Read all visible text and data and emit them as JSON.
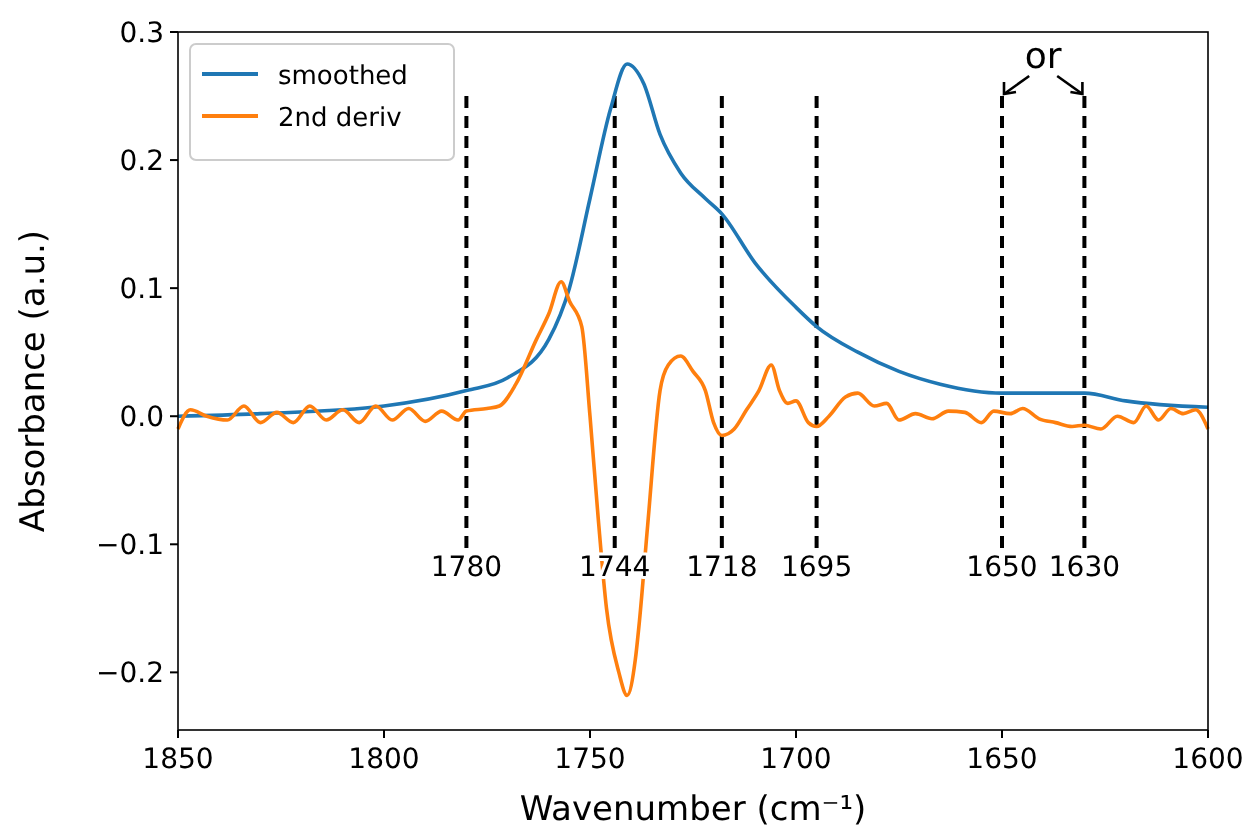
{
  "chart_data": {
    "type": "line",
    "xlabel": "Wavenumber (cm⁻¹)",
    "ylabel": "Absorbance (a.u.)",
    "xlim": [
      1850,
      1600
    ],
    "xticks": [
      1850,
      1800,
      1750,
      1700,
      1650,
      1600
    ],
    "ylim": [
      -0.245,
      0.3
    ],
    "yticks": [
      {
        "value": -0.2,
        "label": "−0.2"
      },
      {
        "value": -0.1,
        "label": "−0.1"
      },
      {
        "value": 0,
        "label": "0.0"
      },
      0.1,
      0.2,
      0.3
    ],
    "grid": false,
    "legend": "top left",
    "line_style": "solid",
    "marker": "none",
    "series": [
      {
        "name": "smoothed",
        "color": "#1f77b4",
        "x": [
          1850,
          1830,
          1800,
          1780,
          1770,
          1760,
          1755,
          1750,
          1745,
          1741,
          1737,
          1733,
          1728,
          1722,
          1718,
          1710,
          1700,
          1695,
          1685,
          1675,
          1665,
          1650,
          1640,
          1630,
          1620,
          1600
        ],
        "values": [
          0.0,
          0.002,
          0.008,
          0.02,
          0.03,
          0.06,
          0.1,
          0.17,
          0.24,
          0.275,
          0.26,
          0.22,
          0.19,
          0.17,
          0.158,
          0.12,
          0.085,
          0.07,
          0.05,
          0.035,
          0.025,
          0.018,
          0.018,
          0.018,
          0.012,
          0.007
        ]
      },
      {
        "name": "2nd deriv",
        "color": "#ff7f0e",
        "x": [
          1850,
          1847,
          1843,
          1838,
          1834,
          1830,
          1826,
          1822,
          1818,
          1814,
          1810,
          1806,
          1802,
          1798,
          1794,
          1790,
          1786,
          1782,
          1780,
          1775,
          1772,
          1768,
          1763,
          1760,
          1757,
          1755,
          1752,
          1750,
          1748,
          1746,
          1743,
          1741,
          1739,
          1738,
          1736,
          1733,
          1731,
          1728,
          1725,
          1722,
          1720,
          1718,
          1715,
          1712,
          1709,
          1706,
          1704,
          1702,
          1700,
          1697,
          1695,
          1692,
          1688,
          1685,
          1681,
          1678,
          1675,
          1671,
          1667,
          1663,
          1659,
          1655,
          1652,
          1648,
          1645,
          1641,
          1637,
          1633,
          1630,
          1626,
          1622,
          1618,
          1615,
          1612,
          1609,
          1606,
          1603,
          1600
        ],
        "values": [
          -0.01,
          0.005,
          0.0,
          -0.003,
          0.008,
          -0.005,
          0.003,
          -0.005,
          0.008,
          -0.003,
          0.005,
          -0.005,
          0.008,
          -0.003,
          0.006,
          -0.004,
          0.004,
          -0.003,
          0.004,
          0.006,
          0.008,
          0.025,
          0.06,
          0.08,
          0.105,
          0.09,
          0.07,
          0.0,
          -0.08,
          -0.15,
          -0.2,
          -0.218,
          -0.19,
          -0.16,
          -0.085,
          0.02,
          0.04,
          0.047,
          0.035,
          0.02,
          -0.005,
          -0.015,
          -0.01,
          0.005,
          0.02,
          0.04,
          0.02,
          0.01,
          0.012,
          -0.005,
          -0.008,
          0.0,
          0.015,
          0.018,
          0.008,
          0.01,
          -0.003,
          0.002,
          -0.002,
          0.004,
          0.003,
          -0.005,
          0.004,
          0.002,
          0.006,
          -0.002,
          -0.005,
          -0.008,
          -0.007,
          -0.01,
          0.0,
          -0.005,
          0.008,
          -0.003,
          0.006,
          0.002,
          0.005,
          -0.01
        ]
      }
    ],
    "ref_lines": [
      {
        "axis": "x",
        "value": 1780,
        "label": "1780",
        "color": "#000000",
        "line_style": "dashed"
      },
      {
        "axis": "x",
        "value": 1744,
        "label": "1744",
        "color": "#000000",
        "line_style": "dashed"
      },
      {
        "axis": "x",
        "value": 1718,
        "label": "1718",
        "color": "#000000",
        "line_style": "dashed"
      },
      {
        "axis": "x",
        "value": 1695,
        "label": "1695",
        "color": "#000000",
        "line_style": "dashed"
      },
      {
        "axis": "x",
        "value": 1650,
        "label": "1650",
        "color": "#000000",
        "line_style": "dashed"
      },
      {
        "axis": "x",
        "value": 1630,
        "label": "1630",
        "color": "#000000",
        "line_style": "dashed"
      }
    ],
    "annotations": [
      "or"
    ]
  }
}
